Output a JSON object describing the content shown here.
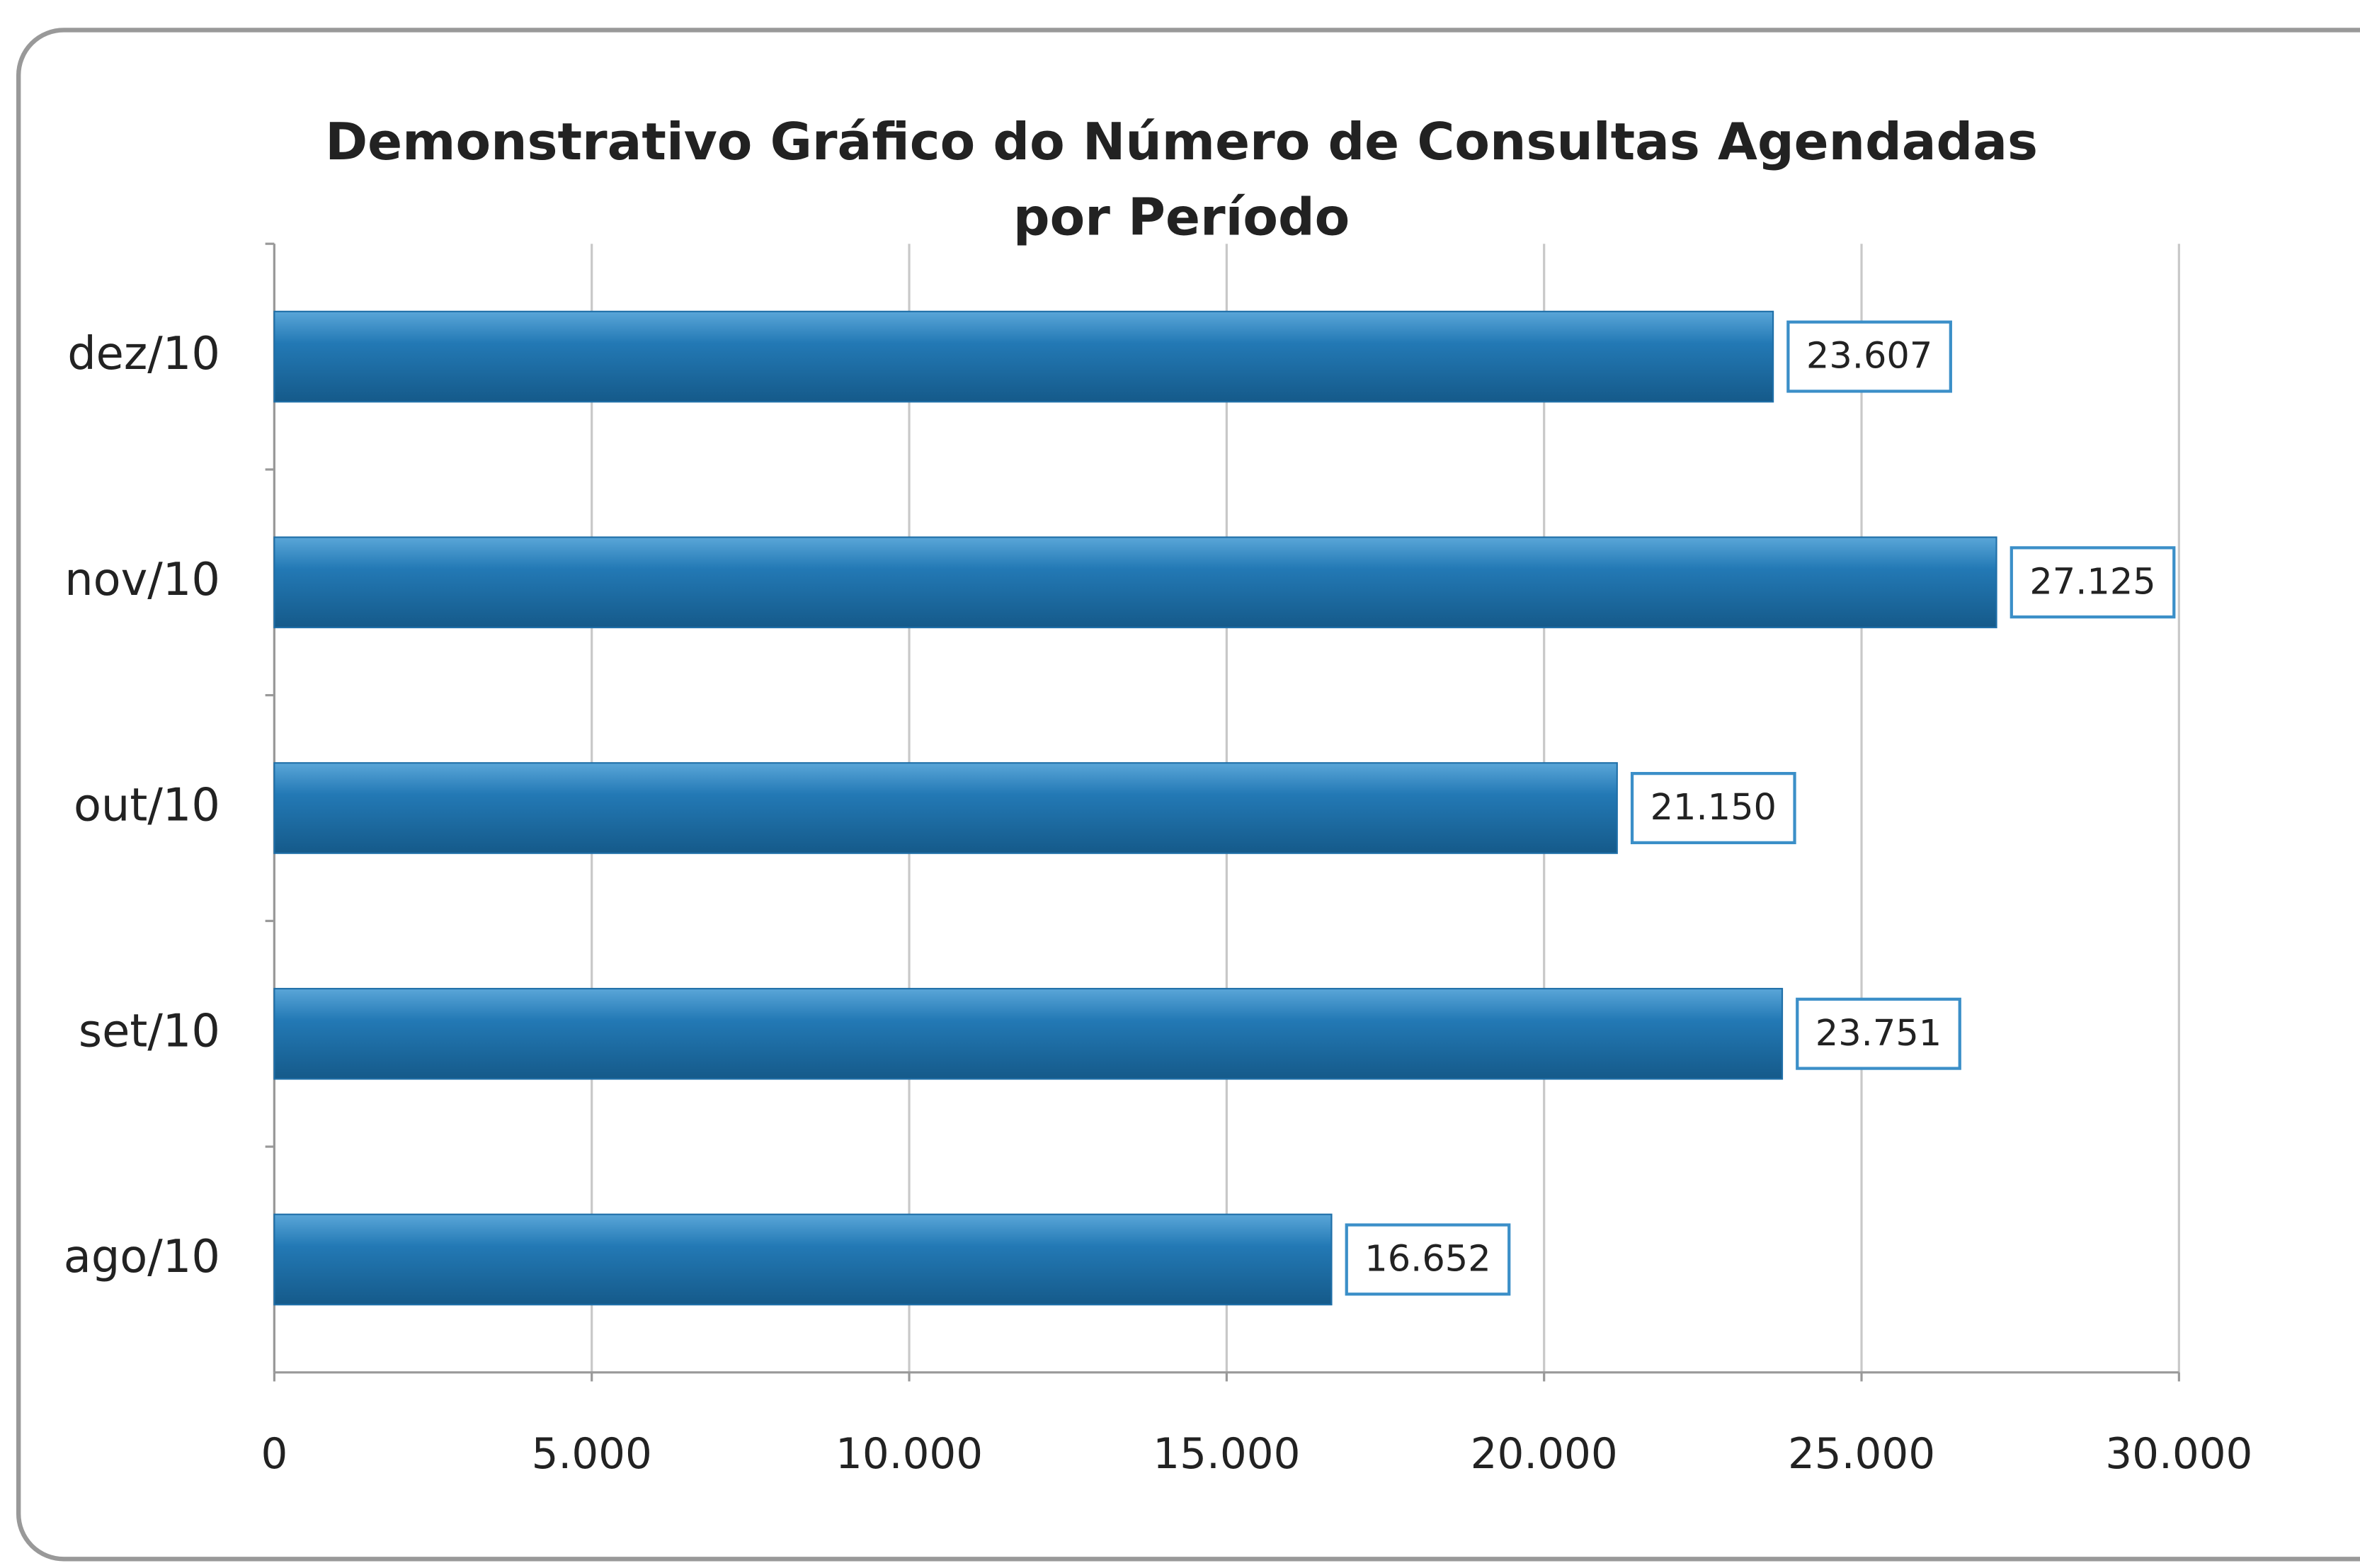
{
  "chart_data": {
    "type": "hbar",
    "title": "Demonstrativo Gráfico do Número de Consultas Agendadas por Período",
    "categories": [
      "dez/10",
      "nov/10",
      "out/10",
      "set/10",
      "ago/10"
    ],
    "values": [
      23607,
      27125,
      21150,
      23751,
      16652
    ],
    "value_labels": [
      "23.607",
      "27.125",
      "21.150",
      "23.751",
      "16.652"
    ],
    "color": "#1f6fa8",
    "xlim": [
      0,
      30000
    ],
    "xticks": [
      0,
      {
        "value": 5000,
        "label": "5.000"
      },
      {
        "value": 10000,
        "label": "10.000"
      },
      {
        "value": 15000,
        "label": "15.000"
      },
      {
        "value": 20000,
        "label": "20.000"
      },
      {
        "value": 25000,
        "label": "25.000"
      },
      {
        "value": 30000,
        "label": "30.000"
      }
    ],
    "grid": true
  }
}
